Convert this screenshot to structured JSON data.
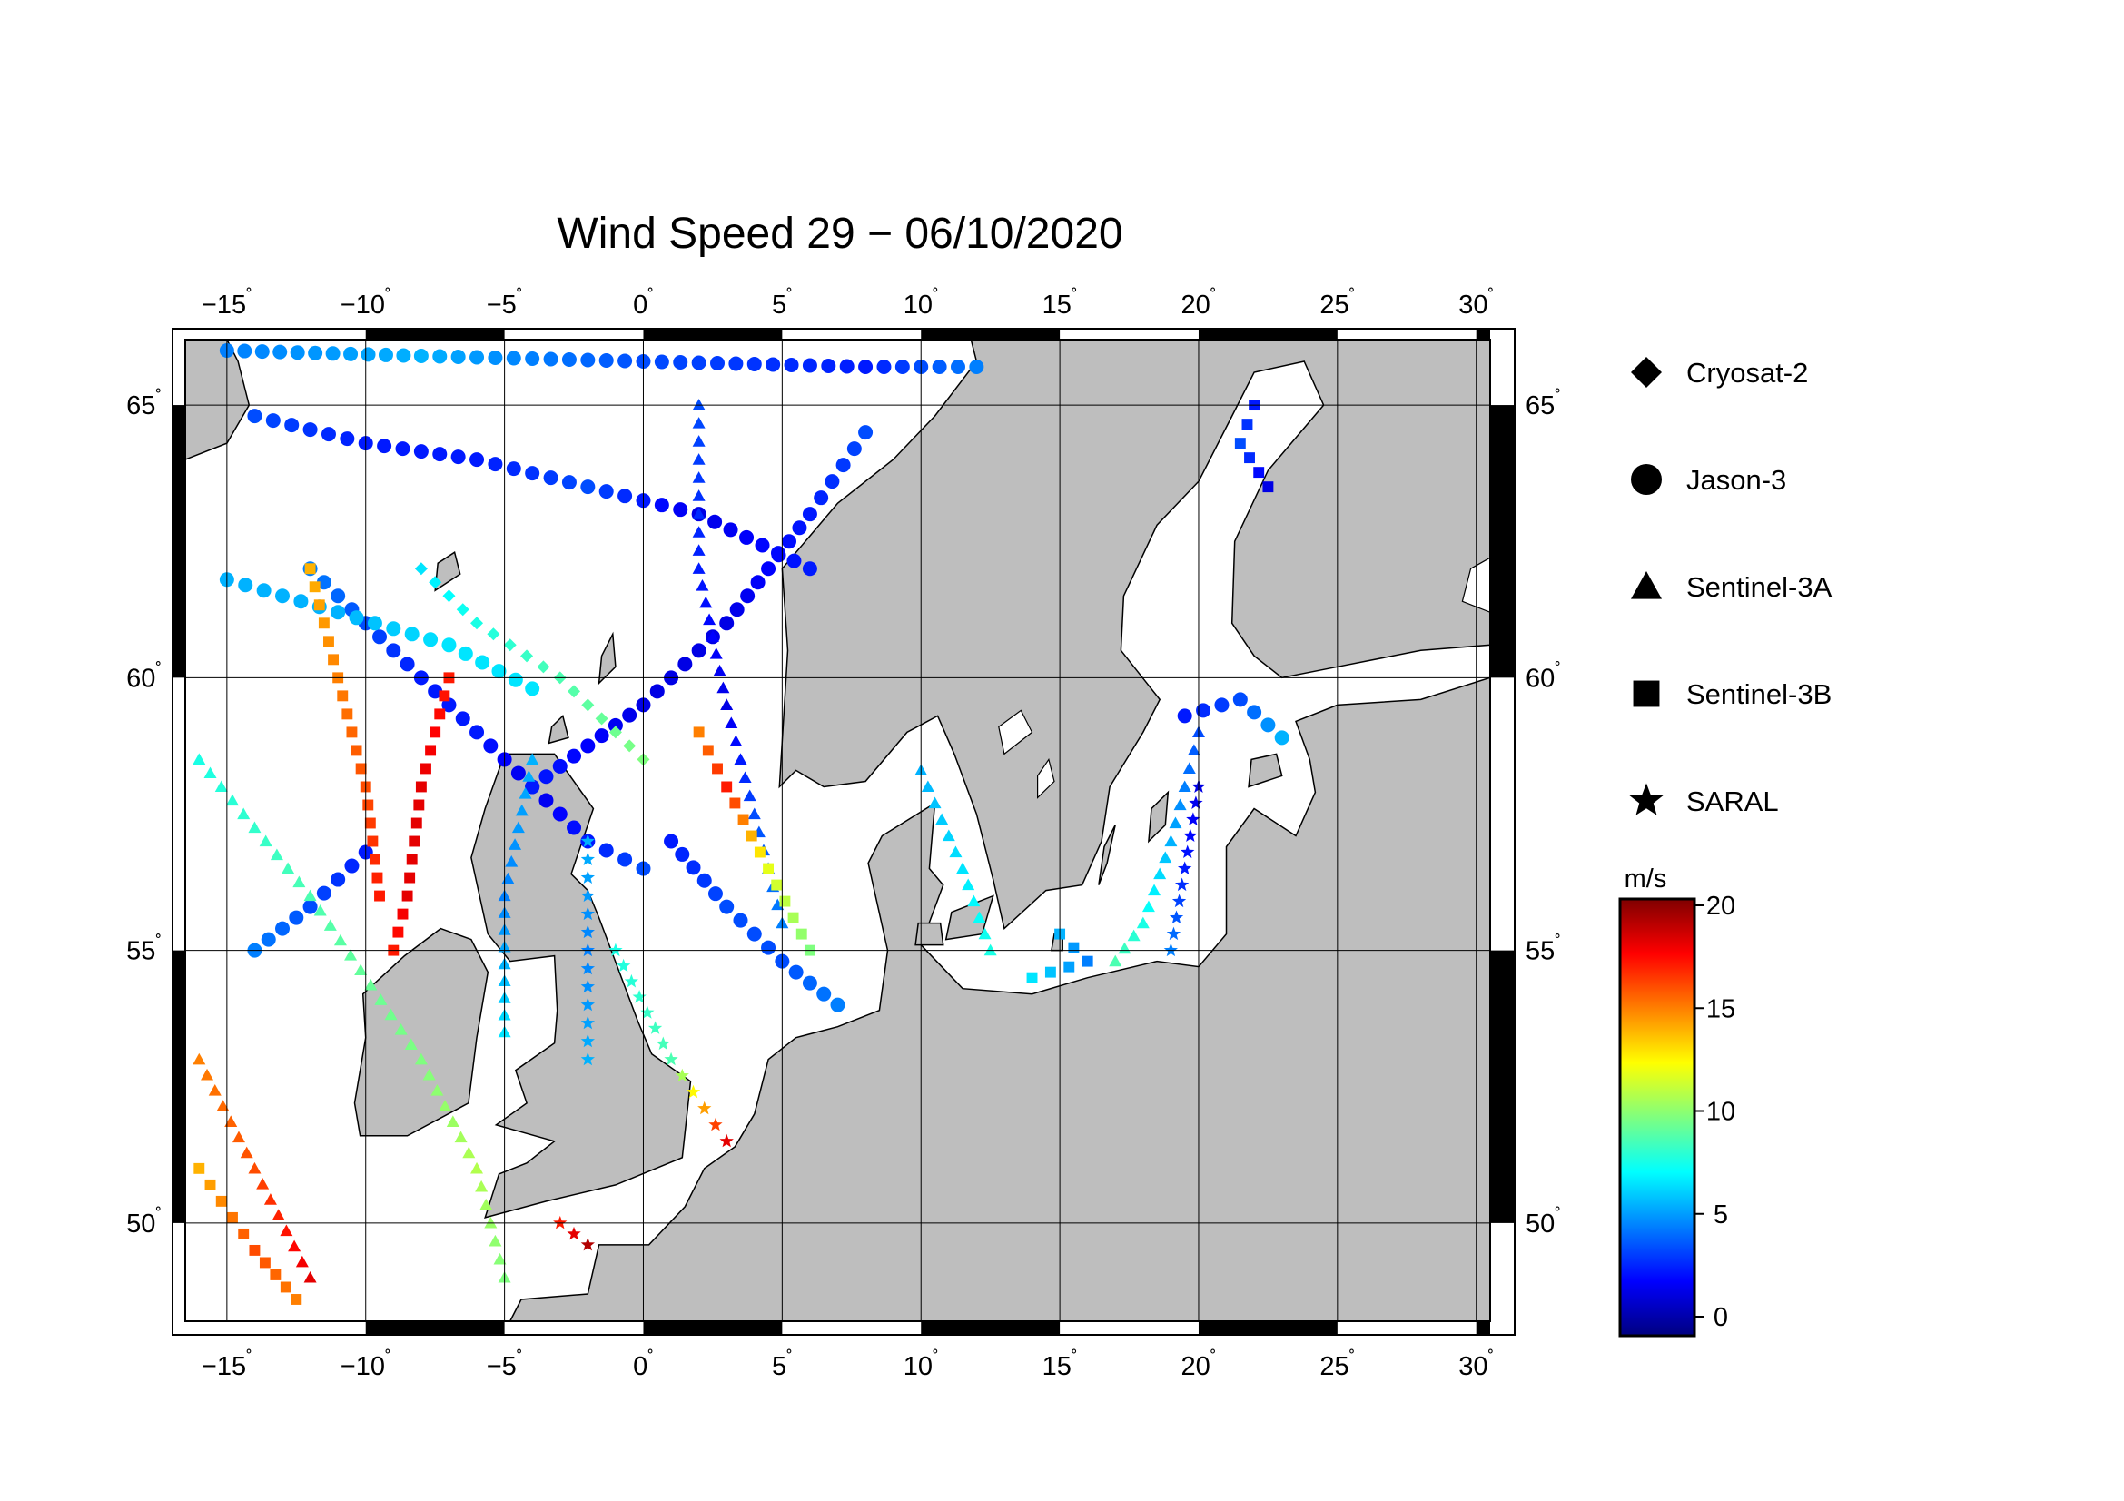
{
  "title": "Wind Speed 29 − 06/10/2020",
  "map": {
    "lon_range": [
      -16.5,
      30.5
    ],
    "lat_range": [
      48.2,
      66.2
    ],
    "land_color": "#bebebe",
    "sea_color": "#ffffff",
    "lon_ticks": [
      {
        "value": -15,
        "label": "−15"
      },
      {
        "value": -10,
        "label": "−10"
      },
      {
        "value": -5,
        "label": "−5"
      },
      {
        "value": 0,
        "label": "0"
      },
      {
        "value": 5,
        "label": "5"
      },
      {
        "value": 10,
        "label": "10"
      },
      {
        "value": 15,
        "label": "15"
      },
      {
        "value": 20,
        "label": "20"
      },
      {
        "value": 25,
        "label": "25"
      },
      {
        "value": 30,
        "label": "30"
      }
    ],
    "lat_ticks": [
      {
        "value": 50,
        "label": "50"
      },
      {
        "value": 55,
        "label": "55"
      },
      {
        "value": 60,
        "label": "60"
      },
      {
        "value": 65,
        "label": "65"
      }
    ],
    "degree_symbol": "˚"
  },
  "legend": {
    "items": [
      {
        "name": "Cryosat-2",
        "symbol": "diamond"
      },
      {
        "name": "Jason-3",
        "symbol": "circle"
      },
      {
        "name": "Sentinel-3A",
        "symbol": "triangle"
      },
      {
        "name": "Sentinel-3B",
        "symbol": "square"
      },
      {
        "name": "SARAL",
        "symbol": "star"
      }
    ]
  },
  "colorbar": {
    "unit": "m/s",
    "min": 0,
    "max": 20,
    "ticks": [
      "0",
      "5",
      "10",
      "15",
      "20"
    ],
    "colormap": [
      "#00007f",
      "#0000ff",
      "#007fff",
      "#00ffff",
      "#7fff7f",
      "#ffff00",
      "#ff7f00",
      "#ff0000",
      "#7f0000"
    ]
  },
  "tracks": [
    {
      "satellite": "Jason-3",
      "symbol": "circle",
      "points": [
        [
          -12,
          62
        ],
        [
          -10,
          61
        ],
        [
          -8,
          60
        ],
        [
          -6,
          59
        ],
        [
          -4,
          58
        ],
        [
          -2,
          57
        ],
        [
          0,
          56.5
        ]
      ],
      "speeds": [
        5,
        4,
        3,
        3,
        2,
        3,
        4
      ]
    },
    {
      "satellite": "Jason-3",
      "symbol": "circle",
      "points": [
        [
          -14,
          64.8
        ],
        [
          -10,
          64.3
        ],
        [
          -6,
          64
        ],
        [
          -2,
          63.5
        ],
        [
          2,
          63
        ],
        [
          6,
          62
        ]
      ],
      "speeds": [
        4,
        3,
        3,
        4,
        2,
        3
      ]
    },
    {
      "satellite": "Jason-3",
      "symbol": "circle",
      "points": [
        [
          -4,
          58
        ],
        [
          0,
          59.5
        ],
        [
          3,
          61
        ],
        [
          6,
          63
        ],
        [
          8,
          64.5
        ]
      ],
      "speeds": [
        3,
        2,
        2,
        3,
        4
      ]
    },
    {
      "satellite": "Jason-3",
      "symbol": "circle",
      "points": [
        [
          -15,
          61.8
        ],
        [
          -11,
          61.2
        ],
        [
          -7,
          60.6
        ],
        [
          -4,
          59.8
        ]
      ],
      "speeds": [
        6,
        6,
        7,
        7
      ]
    },
    {
      "satellite": "Jason-3",
      "symbol": "circle",
      "points": [
        [
          1,
          57
        ],
        [
          3,
          55.8
        ],
        [
          5,
          54.8
        ],
        [
          7,
          54
        ]
      ],
      "speeds": [
        3,
        4,
        4,
        5
      ]
    },
    {
      "satellite": "Jason-3",
      "symbol": "circle",
      "points": [
        [
          -10,
          56.8
        ],
        [
          -12,
          55.8
        ],
        [
          -14,
          55
        ]
      ],
      "speeds": [
        3,
        4,
        5
      ]
    },
    {
      "satellite": "Jason-3",
      "symbol": "circle",
      "points": [
        [
          -15,
          66
        ],
        [
          -8,
          65.9
        ],
        [
          0,
          65.8
        ],
        [
          8,
          65.7
        ],
        [
          12,
          65.7
        ]
      ],
      "speeds": [
        5,
        6,
        4,
        3,
        5
      ]
    },
    {
      "satellite": "Jason-3",
      "symbol": "circle",
      "points": [
        [
          19.5,
          59.3
        ],
        [
          21.5,
          59.6
        ],
        [
          23,
          58.9
        ]
      ],
      "speeds": [
        3,
        4,
        6
      ]
    },
    {
      "satellite": "Sentinel-3A",
      "symbol": "triangle",
      "points": [
        [
          -16,
          58.5
        ],
        [
          -12,
          56
        ],
        [
          -8,
          53
        ],
        [
          -6,
          51
        ],
        [
          -5,
          49
        ]
      ],
      "speeds": [
        8,
        9,
        10,
        11,
        10
      ]
    },
    {
      "satellite": "Sentinel-3A",
      "symbol": "triangle",
      "points": [
        [
          2,
          65
        ],
        [
          2,
          62
        ],
        [
          3,
          59.5
        ],
        [
          4,
          57.5
        ],
        [
          5,
          55.5
        ]
      ],
      "speeds": [
        4,
        3,
        2,
        4,
        5
      ]
    },
    {
      "satellite": "Sentinel-3A",
      "symbol": "triangle",
      "points": [
        [
          -4,
          58.5
        ],
        [
          -5,
          56
        ],
        [
          -5,
          53.5
        ]
      ],
      "speeds": [
        6,
        5,
        7
      ]
    },
    {
      "satellite": "Sentinel-3A",
      "symbol": "triangle",
      "points": [
        [
          20,
          59
        ],
        [
          19,
          57
        ],
        [
          18,
          55.5
        ],
        [
          17,
          54.8
        ]
      ],
      "speeds": [
        4,
        6,
        8,
        9
      ]
    },
    {
      "satellite": "Sentinel-3A",
      "symbol": "triangle",
      "points": [
        [
          -16,
          53
        ],
        [
          -14,
          51
        ],
        [
          -12,
          49
        ]
      ],
      "speeds": [
        15,
        16,
        18
      ]
    },
    {
      "satellite": "Sentinel-3A",
      "symbol": "triangle",
      "points": [
        [
          10,
          58.3
        ],
        [
          11.5,
          56.5
        ],
        [
          12.5,
          55
        ]
      ],
      "speeds": [
        6,
        7,
        8
      ]
    },
    {
      "satellite": "Sentinel-3B",
      "symbol": "square",
      "points": [
        [
          -7,
          60
        ],
        [
          -8,
          58
        ],
        [
          -8.5,
          56
        ],
        [
          -9,
          55
        ]
      ],
      "speeds": [
        17,
        18,
        18,
        17
      ]
    },
    {
      "satellite": "Sentinel-3B",
      "symbol": "square",
      "points": [
        [
          -12,
          62
        ],
        [
          -11,
          60
        ],
        [
          -10,
          58
        ],
        [
          -9.5,
          56
        ]
      ],
      "speeds": [
        14,
        15,
        16,
        17
      ]
    },
    {
      "satellite": "Sentinel-3B",
      "symbol": "square",
      "points": [
        [
          2,
          59
        ],
        [
          3,
          58
        ],
        [
          4.5,
          56.5
        ],
        [
          6,
          55
        ]
      ],
      "speeds": [
        15,
        17,
        12,
        10
      ]
    },
    {
      "satellite": "Sentinel-3B",
      "symbol": "square",
      "points": [
        [
          15,
          55.3
        ],
        [
          16,
          54.8
        ],
        [
          14,
          54.5
        ]
      ],
      "speeds": [
        6,
        5,
        7
      ]
    },
    {
      "satellite": "Sentinel-3B",
      "symbol": "square",
      "points": [
        [
          22,
          65
        ],
        [
          21.5,
          64.3
        ],
        [
          22.5,
          63.5
        ]
      ],
      "speeds": [
        3,
        4,
        2
      ]
    },
    {
      "satellite": "Sentinel-3B",
      "symbol": "square",
      "points": [
        [
          -16,
          51
        ],
        [
          -14,
          49.5
        ],
        [
          -12.5,
          48.6
        ]
      ],
      "speeds": [
        14,
        16,
        15
      ]
    },
    {
      "satellite": "SARAL",
      "symbol": "star",
      "points": [
        [
          -3,
          50
        ],
        [
          -2.5,
          49.8
        ],
        [
          -2,
          49.6
        ]
      ],
      "speeds": [
        17,
        18,
        19
      ]
    },
    {
      "satellite": "SARAL",
      "symbol": "star",
      "points": [
        [
          3,
          51.5
        ],
        [
          1,
          53
        ],
        [
          -1,
          55
        ]
      ],
      "speeds": [
        18,
        9,
        8
      ]
    },
    {
      "satellite": "SARAL",
      "symbol": "star",
      "points": [
        [
          -2,
          57
        ],
        [
          -2,
          55
        ],
        [
          -2,
          53
        ]
      ],
      "speeds": [
        6,
        5,
        6
      ]
    },
    {
      "satellite": "SARAL",
      "symbol": "star",
      "points": [
        [
          20,
          58
        ],
        [
          19.5,
          56.5
        ],
        [
          19,
          55
        ]
      ],
      "speeds": [
        2,
        3,
        5
      ]
    },
    {
      "satellite": "Cryosat-2",
      "symbol": "diamond",
      "points": [
        [
          -8,
          62
        ],
        [
          -6,
          61
        ],
        [
          -3,
          60
        ],
        [
          0,
          58.5
        ]
      ],
      "speeds": [
        7,
        8,
        9,
        10
      ]
    }
  ]
}
